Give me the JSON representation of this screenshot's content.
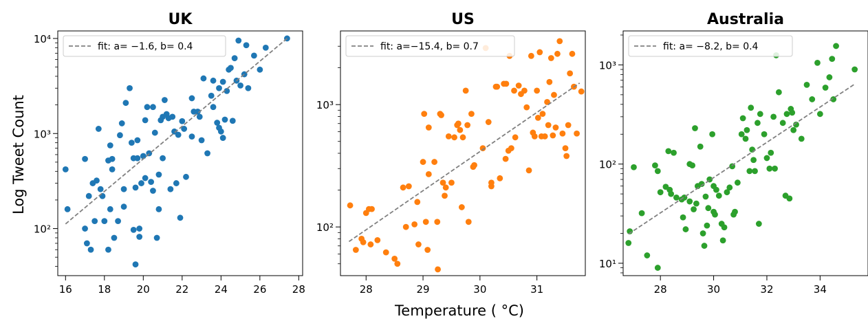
{
  "figure": {
    "ylabel": "Log Tweet Count",
    "xlabel": "Temperature ($^\\circ$C)",
    "xlabel_display": "Temperature ( °C)"
  },
  "chart_data": [
    {
      "type": "scatter",
      "title": "UK",
      "color": "#1f77b4",
      "yscale": "log",
      "xlim": [
        15.6,
        28.2
      ],
      "ylim": [
        32,
        12000
      ],
      "xticks": [
        16,
        18,
        20,
        22,
        24,
        26,
        28
      ],
      "xtick_labels": [
        "16",
        "18",
        "20",
        "22",
        "24",
        "26",
        "28"
      ],
      "yticks": [
        100,
        1000,
        10000
      ],
      "ytick_labels": [
        "10²",
        "10³",
        "10⁴"
      ],
      "legend": "fit: a= −1.6, b=  0.4",
      "legend_position": "upper left",
      "fit": {
        "a": -1.6,
        "b": 0.4,
        "x_range": [
          16.0,
          27.4
        ],
        "y_range": [
          112,
          10000
        ]
      },
      "points": [
        [
          16.0,
          420
        ],
        [
          16.1,
          160
        ],
        [
          17.0,
          540
        ],
        [
          17.1,
          70
        ],
        [
          17.0,
          100
        ],
        [
          17.2,
          220
        ],
        [
          17.3,
          60
        ],
        [
          17.5,
          120
        ],
        [
          17.6,
          320
        ],
        [
          17.7,
          1120
        ],
        [
          17.8,
          260
        ],
        [
          17.9,
          220
        ],
        [
          18.0,
          120
        ],
        [
          18.2,
          520
        ],
        [
          18.3,
          750
        ],
        [
          18.3,
          160
        ],
        [
          18.4,
          420
        ],
        [
          18.5,
          80
        ],
        [
          18.7,
          120
        ],
        [
          18.8,
          960
        ],
        [
          19.0,
          260
        ],
        [
          19.1,
          2100
        ],
        [
          19.3,
          3000
        ],
        [
          19.4,
          800
        ],
        [
          19.5,
          550
        ],
        [
          19.6,
          270
        ],
        [
          19.7,
          550
        ],
        [
          19.8,
          100
        ],
        [
          19.9,
          300
        ],
        [
          20.1,
          340
        ],
        [
          20.1,
          1380
        ],
        [
          20.2,
          1900
        ],
        [
          20.3,
          620
        ],
        [
          20.4,
          310
        ],
        [
          20.5,
          250
        ],
        [
          20.6,
          1020
        ],
        [
          20.8,
          370
        ],
        [
          20.9,
          1380
        ],
        [
          21.0,
          1500
        ],
        [
          21.1,
          2250
        ],
        [
          21.2,
          1600
        ],
        [
          21.3,
          1450
        ],
        [
          21.5,
          1500
        ],
        [
          21.6,
          1050
        ],
        [
          21.7,
          300
        ],
        [
          21.9,
          130
        ],
        [
          22.0,
          1350
        ],
        [
          22.1,
          1120
        ],
        [
          22.5,
          2350
        ],
        [
          22.6,
          1700
        ],
        [
          22.8,
          1700
        ],
        [
          22.9,
          1500
        ],
        [
          23.1,
          3800
        ],
        [
          23.3,
          620
        ],
        [
          23.5,
          2500
        ],
        [
          23.6,
          3600
        ],
        [
          23.8,
          1300
        ],
        [
          23.9,
          3000
        ],
        [
          24.0,
          1050
        ],
        [
          24.1,
          3500
        ],
        [
          24.2,
          1400
        ],
        [
          24.4,
          4700
        ],
        [
          24.5,
          4900
        ],
        [
          24.6,
          1360
        ],
        [
          24.7,
          6200
        ],
        [
          24.8,
          3600
        ],
        [
          24.9,
          9500
        ],
        [
          25.0,
          3200
        ],
        [
          25.2,
          4200
        ],
        [
          25.3,
          8500
        ],
        [
          25.4,
          3000
        ],
        [
          25.7,
          6600
        ],
        [
          26.0,
          4700
        ],
        [
          26.3,
          8000
        ],
        [
          27.4,
          10000
        ],
        [
          19.6,
          42
        ],
        [
          19.8,
          82
        ],
        [
          20.7,
          80
        ],
        [
          19.0,
          170
        ],
        [
          18.2,
          60
        ],
        [
          18.4,
          540
        ],
        [
          19.5,
          97
        ],
        [
          20.0,
          580
        ],
        [
          21.0,
          550
        ],
        [
          22.5,
          930
        ],
        [
          23.9,
          1150
        ],
        [
          24.3,
          2800
        ],
        [
          23.6,
          1900
        ],
        [
          22.2,
          350
        ],
        [
          20.8,
          160
        ],
        [
          21.4,
          260
        ],
        [
          17.4,
          300
        ],
        [
          18.9,
          1280
        ],
        [
          19.7,
          850
        ],
        [
          20.5,
          1900
        ],
        [
          24.1,
          900
        ],
        [
          23.0,
          850
        ],
        [
          21.8,
          970
        ]
      ]
    },
    {
      "type": "scatter",
      "title": "US",
      "color": "#ff7f0e",
      "yscale": "log",
      "xlim": [
        27.55,
        31.85
      ],
      "ylim": [
        40,
        4000
      ],
      "xticks": [
        28,
        29,
        30,
        31
      ],
      "xtick_labels": [
        "28",
        "29",
        "30",
        "31"
      ],
      "yticks": [
        100,
        1000
      ],
      "ytick_labels": [
        "10²",
        "10³"
      ],
      "legend": "fit: a=−15.4, b=  0.7",
      "legend_position": "upper left",
      "fit": {
        "a": -15.4,
        "b": 0.7,
        "x_range": [
          27.7,
          31.75
        ],
        "y_range": [
          76,
          1500
        ]
      },
      "points": [
        [
          27.72,
          150
        ],
        [
          27.82,
          65
        ],
        [
          27.92,
          80
        ],
        [
          27.95,
          75
        ],
        [
          28.0,
          130
        ],
        [
          28.05,
          140
        ],
        [
          28.08,
          72
        ],
        [
          28.1,
          140
        ],
        [
          28.2,
          78
        ],
        [
          28.35,
          62
        ],
        [
          28.5,
          55
        ],
        [
          28.55,
          50
        ],
        [
          28.65,
          210
        ],
        [
          28.7,
          100
        ],
        [
          28.75,
          215
        ],
        [
          28.85,
          105
        ],
        [
          28.9,
          160
        ],
        [
          29.0,
          340
        ],
        [
          29.02,
          840
        ],
        [
          29.05,
          110
        ],
        [
          29.08,
          65
        ],
        [
          29.1,
          270
        ],
        [
          29.2,
          340
        ],
        [
          29.25,
          110
        ],
        [
          29.3,
          840
        ],
        [
          29.32,
          820
        ],
        [
          29.35,
          230
        ],
        [
          29.4,
          210
        ],
        [
          29.45,
          550
        ],
        [
          29.5,
          230
        ],
        [
          29.55,
          540
        ],
        [
          29.6,
          680
        ],
        [
          29.62,
          700
        ],
        [
          29.65,
          620
        ],
        [
          29.7,
          540
        ],
        [
          29.75,
          1300
        ],
        [
          29.78,
          680
        ],
        [
          29.8,
          110
        ],
        [
          29.85,
          840
        ],
        [
          29.88,
          310
        ],
        [
          29.9,
          320
        ],
        [
          30.05,
          440
        ],
        [
          30.1,
          2900
        ],
        [
          30.15,
          720
        ],
        [
          30.2,
          215
        ],
        [
          30.28,
          1400
        ],
        [
          30.3,
          1400
        ],
        [
          30.35,
          250
        ],
        [
          30.42,
          1480
        ],
        [
          30.46,
          1480
        ],
        [
          30.5,
          420
        ],
        [
          30.52,
          2500
        ],
        [
          30.55,
          440
        ],
        [
          30.6,
          1300
        ],
        [
          30.62,
          540
        ],
        [
          30.68,
          1430
        ],
        [
          30.72,
          1220
        ],
        [
          30.78,
          1300
        ],
        [
          30.82,
          950
        ],
        [
          30.86,
          290
        ],
        [
          30.9,
          2500
        ],
        [
          30.93,
          590
        ],
        [
          30.96,
          550
        ],
        [
          31.0,
          1300
        ],
        [
          31.02,
          780
        ],
        [
          31.05,
          2680
        ],
        [
          31.08,
          550
        ],
        [
          31.1,
          840
        ],
        [
          31.14,
          550
        ],
        [
          31.18,
          1050
        ],
        [
          31.22,
          1530
        ],
        [
          31.25,
          2400
        ],
        [
          31.28,
          560
        ],
        [
          31.3,
          1200
        ],
        [
          31.33,
          650
        ],
        [
          31.36,
          2600
        ],
        [
          31.4,
          3300
        ],
        [
          31.45,
          580
        ],
        [
          31.5,
          440
        ],
        [
          31.52,
          380
        ],
        [
          31.55,
          680
        ],
        [
          31.58,
          1800
        ],
        [
          31.62,
          2600
        ],
        [
          31.65,
          1400
        ],
        [
          31.7,
          580
        ],
        [
          31.78,
          1280
        ],
        [
          29.26,
          45
        ],
        [
          29.68,
          145
        ],
        [
          28.92,
          72
        ],
        [
          30.2,
          230
        ],
        [
          29.38,
          180
        ],
        [
          29.1,
          650
        ],
        [
          30.45,
          360
        ],
        [
          31.2,
          680
        ]
      ]
    },
    {
      "type": "scatter",
      "title": "Australia",
      "color": "#2ca02c",
      "yscale": "log",
      "xlim": [
        26.6,
        35.8
      ],
      "ylim": [
        7.5,
        2200
      ],
      "xticks": [
        28,
        30,
        32,
        34
      ],
      "xtick_labels": [
        "28",
        "30",
        "32",
        "34"
      ],
      "yticks": [
        10,
        100,
        1000
      ],
      "ytick_labels": [
        "10¹",
        "10²",
        "10³"
      ],
      "legend": "fit: a= −8.2, b=  0.4",
      "legend_position": "upper left",
      "fit": {
        "a": -8.2,
        "b": 0.4,
        "x_range": [
          26.8,
          35.3
        ],
        "y_range": [
          19.7,
          640
        ]
      },
      "points": [
        [
          26.8,
          16
        ],
        [
          26.85,
          21
        ],
        [
          27.0,
          93
        ],
        [
          27.3,
          32
        ],
        [
          27.5,
          12
        ],
        [
          27.8,
          97
        ],
        [
          27.9,
          9
        ],
        [
          27.9,
          85
        ],
        [
          28.0,
          52
        ],
        [
          28.2,
          59
        ],
        [
          28.3,
          135
        ],
        [
          28.35,
          55
        ],
        [
          28.5,
          130
        ],
        [
          28.6,
          46
        ],
        [
          28.8,
          44
        ],
        [
          28.85,
          29
        ],
        [
          28.9,
          46
        ],
        [
          28.95,
          22
        ],
        [
          29.1,
          42
        ],
        [
          29.2,
          97
        ],
        [
          29.25,
          35
        ],
        [
          29.3,
          230
        ],
        [
          29.35,
          40
        ],
        [
          29.4,
          60
        ],
        [
          29.5,
          150
        ],
        [
          29.55,
          63
        ],
        [
          29.6,
          20
        ],
        [
          29.65,
          15
        ],
        [
          29.7,
          47
        ],
        [
          29.8,
          36
        ],
        [
          29.85,
          70
        ],
        [
          29.95,
          200
        ],
        [
          30.0,
          33
        ],
        [
          30.05,
          31
        ],
        [
          30.1,
          55
        ],
        [
          30.2,
          48
        ],
        [
          30.3,
          25
        ],
        [
          30.35,
          17
        ],
        [
          30.4,
          23
        ],
        [
          30.5,
          52
        ],
        [
          30.6,
          58
        ],
        [
          30.75,
          31
        ],
        [
          30.8,
          33
        ],
        [
          30.9,
          65
        ],
        [
          31.05,
          200
        ],
        [
          31.1,
          290
        ],
        [
          31.2,
          180
        ],
        [
          31.35,
          85
        ],
        [
          31.4,
          370
        ],
        [
          31.45,
          140
        ],
        [
          31.55,
          85
        ],
        [
          31.65,
          260
        ],
        [
          31.7,
          25
        ],
        [
          31.75,
          320
        ],
        [
          31.9,
          200
        ],
        [
          32.0,
          115
        ],
        [
          32.1,
          90
        ],
        [
          32.15,
          130
        ],
        [
          32.25,
          300
        ],
        [
          32.3,
          90
        ],
        [
          32.35,
          1250
        ],
        [
          32.45,
          530
        ],
        [
          32.6,
          260
        ],
        [
          32.7,
          48
        ],
        [
          32.75,
          320
        ],
        [
          32.85,
          45
        ],
        [
          32.9,
          360
        ],
        [
          33.0,
          220
        ],
        [
          33.1,
          250
        ],
        [
          33.3,
          180
        ],
        [
          33.5,
          630
        ],
        [
          33.9,
          1050
        ],
        [
          34.0,
          320
        ],
        [
          34.2,
          590
        ],
        [
          34.35,
          750
        ],
        [
          34.45,
          1150
        ],
        [
          34.5,
          450
        ],
        [
          34.6,
          1550
        ],
        [
          35.3,
          900
        ],
        [
          30.0,
          60
        ],
        [
          28.4,
          50
        ],
        [
          29.1,
          100
        ],
        [
          31.25,
          220
        ],
        [
          32.95,
          330
        ],
        [
          30.7,
          95
        ],
        [
          31.5,
          110
        ],
        [
          29.75,
          24
        ],
        [
          33.7,
          450
        ]
      ]
    }
  ]
}
